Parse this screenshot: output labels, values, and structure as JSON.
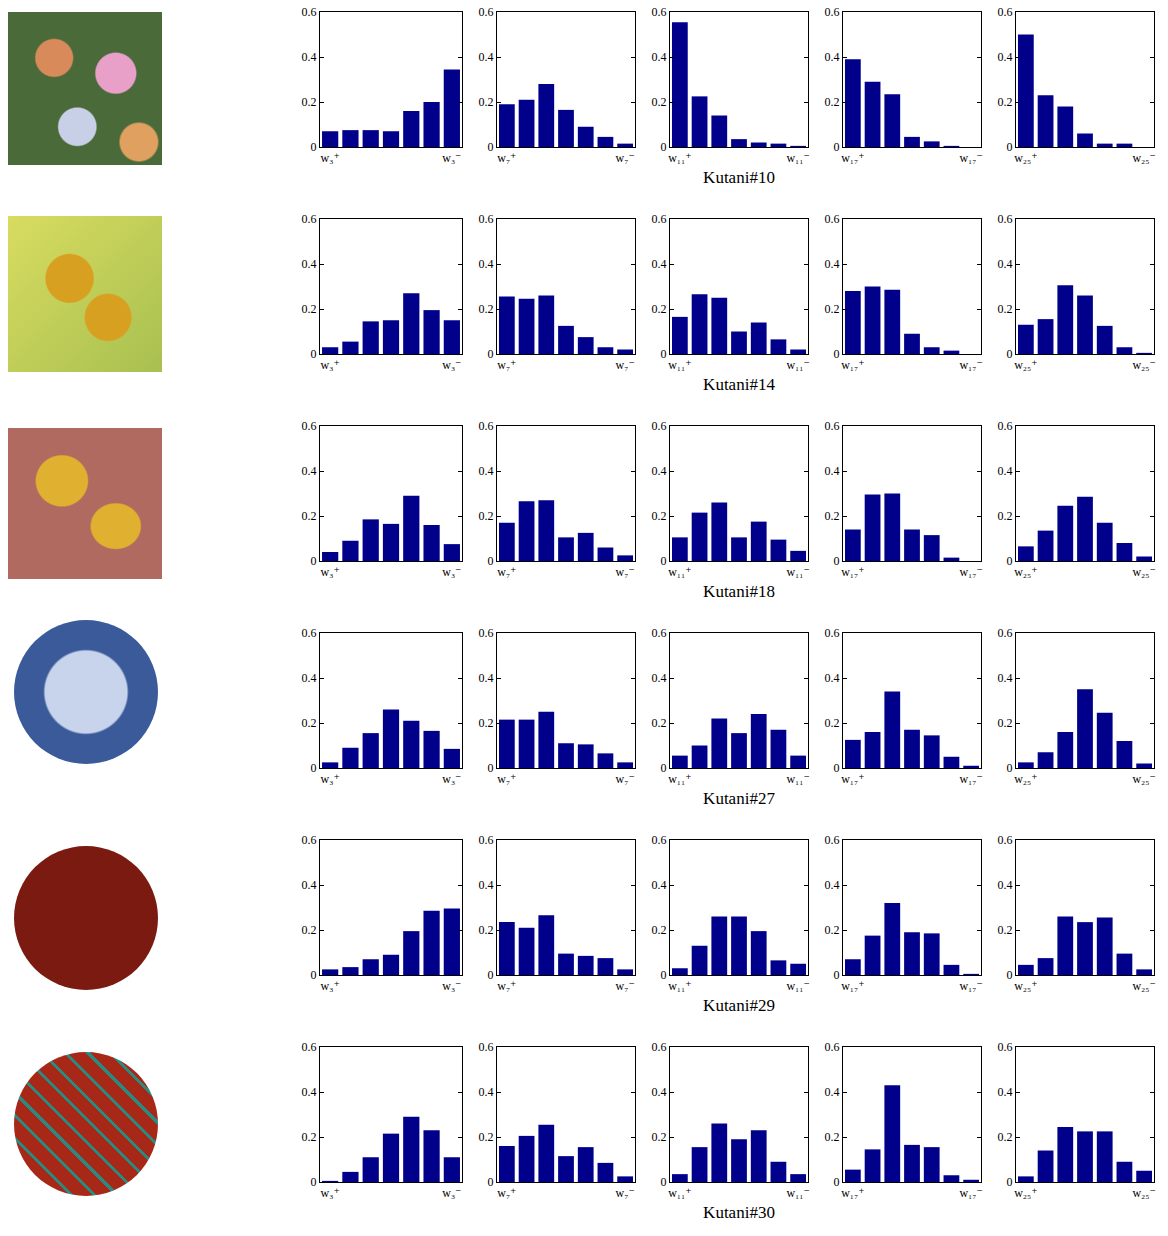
{
  "chart_data": [
    {
      "type": "bar",
      "categories": [
        "w₃⁺",
        null,
        null,
        null,
        null,
        null,
        "w₃⁻"
      ],
      "values": [
        0.07,
        0.075,
        0.075,
        0.07,
        0.16,
        0.2,
        0.345
      ],
      "ylim": [
        0,
        0.6
      ],
      "yticks": [
        0,
        0.2,
        0.4,
        0.6
      ],
      "color": "#00008b"
    },
    {
      "type": "bar",
      "categories": [
        "w₇⁺",
        null,
        null,
        null,
        null,
        null,
        "w₇⁻"
      ],
      "values": [
        0.19,
        0.21,
        0.28,
        0.165,
        0.09,
        0.045,
        0.015
      ],
      "ylim": [
        0,
        0.6
      ],
      "yticks": [
        0,
        0.2,
        0.4,
        0.6
      ],
      "color": "#00008b"
    },
    {
      "type": "bar",
      "categories": [
        "w₁₁⁺",
        null,
        null,
        null,
        null,
        null,
        "w₁₁⁻"
      ],
      "values": [
        0.555,
        0.225,
        0.14,
        0.035,
        0.02,
        0.015,
        0.005
      ],
      "ylim": [
        0,
        0.6
      ],
      "yticks": [
        0,
        0.2,
        0.4,
        0.6
      ],
      "color": "#00008b",
      "xlabel": "Kutani#10"
    },
    {
      "type": "bar",
      "categories": [
        "w₁₇⁺",
        null,
        null,
        null,
        null,
        null,
        "w₁₇⁻"
      ],
      "values": [
        0.39,
        0.29,
        0.235,
        0.045,
        0.025,
        0.005,
        0
      ],
      "ylim": [
        0,
        0.6
      ],
      "yticks": [
        0,
        0.2,
        0.4,
        0.6
      ],
      "color": "#00008b"
    },
    {
      "type": "bar",
      "categories": [
        "w₂₅⁺",
        null,
        null,
        null,
        null,
        null,
        "w₂₅⁻"
      ],
      "values": [
        0.5,
        0.23,
        0.18,
        0.06,
        0.015,
        0.015,
        0
      ],
      "ylim": [
        0,
        0.6
      ],
      "yticks": [
        0,
        0.2,
        0.4,
        0.6
      ],
      "color": "#00008b"
    },
    {
      "type": "bar",
      "categories": [
        "w₃⁺",
        null,
        null,
        null,
        null,
        null,
        "w₃⁻"
      ],
      "values": [
        0.03,
        0.055,
        0.145,
        0.15,
        0.27,
        0.195,
        0.15
      ],
      "ylim": [
        0,
        0.6
      ],
      "yticks": [
        0,
        0.2,
        0.4,
        0.6
      ],
      "color": "#00008b"
    },
    {
      "type": "bar",
      "categories": [
        "w₇⁺",
        null,
        null,
        null,
        null,
        null,
        "w₇⁻"
      ],
      "values": [
        0.255,
        0.245,
        0.26,
        0.125,
        0.075,
        0.03,
        0.02
      ],
      "ylim": [
        0,
        0.6
      ],
      "yticks": [
        0,
        0.2,
        0.4,
        0.6
      ],
      "color": "#00008b"
    },
    {
      "type": "bar",
      "categories": [
        "w₁₁⁺",
        null,
        null,
        null,
        null,
        null,
        "w₁₁⁻"
      ],
      "values": [
        0.165,
        0.265,
        0.25,
        0.1,
        0.14,
        0.065,
        0.02
      ],
      "ylim": [
        0,
        0.6
      ],
      "yticks": [
        0,
        0.2,
        0.4,
        0.6
      ],
      "color": "#00008b",
      "xlabel": "Kutani#14"
    },
    {
      "type": "bar",
      "categories": [
        "w₁₇⁺",
        null,
        null,
        null,
        null,
        null,
        "w₁₇⁻"
      ],
      "values": [
        0.28,
        0.3,
        0.285,
        0.09,
        0.03,
        0.015,
        0
      ],
      "ylim": [
        0,
        0.6
      ],
      "yticks": [
        0,
        0.2,
        0.4,
        0.6
      ],
      "color": "#00008b"
    },
    {
      "type": "bar",
      "categories": [
        "w₂₅⁺",
        null,
        null,
        null,
        null,
        null,
        "w₂₅⁻"
      ],
      "values": [
        0.13,
        0.155,
        0.305,
        0.26,
        0.125,
        0.03,
        0.005
      ],
      "ylim": [
        0,
        0.6
      ],
      "yticks": [
        0,
        0.2,
        0.4,
        0.6
      ],
      "color": "#00008b"
    },
    {
      "type": "bar",
      "categories": [
        "w₃⁺",
        null,
        null,
        null,
        null,
        null,
        "w₃⁻"
      ],
      "values": [
        0.04,
        0.09,
        0.185,
        0.165,
        0.29,
        0.16,
        0.075
      ],
      "ylim": [
        0,
        0.6
      ],
      "yticks": [
        0,
        0.2,
        0.4,
        0.6
      ],
      "color": "#00008b"
    },
    {
      "type": "bar",
      "categories": [
        "w₇⁺",
        null,
        null,
        null,
        null,
        null,
        "w₇⁻"
      ],
      "values": [
        0.17,
        0.265,
        0.27,
        0.105,
        0.125,
        0.06,
        0.025
      ],
      "ylim": [
        0,
        0.6
      ],
      "yticks": [
        0,
        0.2,
        0.4,
        0.6
      ],
      "color": "#00008b"
    },
    {
      "type": "bar",
      "categories": [
        "w₁₁⁺",
        null,
        null,
        null,
        null,
        null,
        "w₁₁⁻"
      ],
      "values": [
        0.105,
        0.215,
        0.26,
        0.105,
        0.175,
        0.095,
        0.045
      ],
      "ylim": [
        0,
        0.6
      ],
      "yticks": [
        0,
        0.2,
        0.4,
        0.6
      ],
      "color": "#00008b",
      "xlabel": "Kutani#18"
    },
    {
      "type": "bar",
      "categories": [
        "w₁₇⁺",
        null,
        null,
        null,
        null,
        null,
        "w₁₇⁻"
      ],
      "values": [
        0.14,
        0.295,
        0.3,
        0.14,
        0.115,
        0.015,
        0
      ],
      "ylim": [
        0,
        0.6
      ],
      "yticks": [
        0,
        0.2,
        0.4,
        0.6
      ],
      "color": "#00008b"
    },
    {
      "type": "bar",
      "categories": [
        "w₂₅⁺",
        null,
        null,
        null,
        null,
        null,
        "w₂₅⁻"
      ],
      "values": [
        0.065,
        0.135,
        0.245,
        0.285,
        0.17,
        0.08,
        0.02
      ],
      "ylim": [
        0,
        0.6
      ],
      "yticks": [
        0,
        0.2,
        0.4,
        0.6
      ],
      "color": "#00008b"
    },
    {
      "type": "bar",
      "categories": [
        "w₃⁺",
        null,
        null,
        null,
        null,
        null,
        "w₃⁻"
      ],
      "values": [
        0.025,
        0.09,
        0.155,
        0.26,
        0.21,
        0.165,
        0.085
      ],
      "ylim": [
        0,
        0.6
      ],
      "yticks": [
        0,
        0.2,
        0.4,
        0.6
      ],
      "color": "#00008b"
    },
    {
      "type": "bar",
      "categories": [
        "w₇⁺",
        null,
        null,
        null,
        null,
        null,
        "w₇⁻"
      ],
      "values": [
        0.215,
        0.215,
        0.25,
        0.11,
        0.105,
        0.065,
        0.025
      ],
      "ylim": [
        0,
        0.6
      ],
      "yticks": [
        0,
        0.2,
        0.4,
        0.6
      ],
      "color": "#00008b"
    },
    {
      "type": "bar",
      "categories": [
        "w₁₁⁺",
        null,
        null,
        null,
        null,
        null,
        "w₁₁⁻"
      ],
      "values": [
        0.055,
        0.1,
        0.22,
        0.155,
        0.24,
        0.17,
        0.055
      ],
      "ylim": [
        0,
        0.6
      ],
      "yticks": [
        0,
        0.2,
        0.4,
        0.6
      ],
      "color": "#00008b",
      "xlabel": "Kutani#27"
    },
    {
      "type": "bar",
      "categories": [
        "w₁₇⁺",
        null,
        null,
        null,
        null,
        null,
        "w₁₇⁻"
      ],
      "values": [
        0.125,
        0.16,
        0.34,
        0.17,
        0.145,
        0.05,
        0.01
      ],
      "ylim": [
        0,
        0.6
      ],
      "yticks": [
        0,
        0.2,
        0.4,
        0.6
      ],
      "color": "#00008b"
    },
    {
      "type": "bar",
      "categories": [
        "w₂₅⁺",
        null,
        null,
        null,
        null,
        null,
        "w₂₅⁻"
      ],
      "values": [
        0.025,
        0.07,
        0.16,
        0.35,
        0.245,
        0.12,
        0.02
      ],
      "ylim": [
        0,
        0.6
      ],
      "yticks": [
        0,
        0.2,
        0.4,
        0.6
      ],
      "color": "#00008b"
    },
    {
      "type": "bar",
      "categories": [
        "w₃⁺",
        null,
        null,
        null,
        null,
        null,
        "w₃⁻"
      ],
      "values": [
        0.025,
        0.035,
        0.07,
        0.09,
        0.195,
        0.285,
        0.295
      ],
      "ylim": [
        0,
        0.6
      ],
      "yticks": [
        0,
        0.2,
        0.4,
        0.6
      ],
      "color": "#00008b"
    },
    {
      "type": "bar",
      "categories": [
        "w₇⁺",
        null,
        null,
        null,
        null,
        null,
        "w₇⁻"
      ],
      "values": [
        0.235,
        0.21,
        0.265,
        0.095,
        0.085,
        0.075,
        0.025
      ],
      "ylim": [
        0,
        0.6
      ],
      "yticks": [
        0,
        0.2,
        0.4,
        0.6
      ],
      "color": "#00008b"
    },
    {
      "type": "bar",
      "categories": [
        "w₁₁⁺",
        null,
        null,
        null,
        null,
        null,
        "w₁₁⁻"
      ],
      "values": [
        0.03,
        0.13,
        0.26,
        0.26,
        0.195,
        0.065,
        0.05
      ],
      "ylim": [
        0,
        0.6
      ],
      "yticks": [
        0,
        0.2,
        0.4,
        0.6
      ],
      "color": "#00008b",
      "xlabel": "Kutani#29"
    },
    {
      "type": "bar",
      "categories": [
        "w₁₇⁺",
        null,
        null,
        null,
        null,
        null,
        "w₁₇⁻"
      ],
      "values": [
        0.07,
        0.175,
        0.32,
        0.19,
        0.185,
        0.045,
        0.005
      ],
      "ylim": [
        0,
        0.6
      ],
      "yticks": [
        0,
        0.2,
        0.4,
        0.6
      ],
      "color": "#00008b"
    },
    {
      "type": "bar",
      "categories": [
        "w₂₅⁺",
        null,
        null,
        null,
        null,
        null,
        "w₂₅⁻"
      ],
      "values": [
        0.045,
        0.075,
        0.26,
        0.235,
        0.255,
        0.095,
        0.025
      ],
      "ylim": [
        0,
        0.6
      ],
      "yticks": [
        0,
        0.2,
        0.4,
        0.6
      ],
      "color": "#00008b"
    },
    {
      "type": "bar",
      "categories": [
        "w₃⁺",
        null,
        null,
        null,
        null,
        null,
        "w₃⁻"
      ],
      "values": [
        0.005,
        0.045,
        0.11,
        0.215,
        0.29,
        0.23,
        0.11
      ],
      "ylim": [
        0,
        0.6
      ],
      "yticks": [
        0,
        0.2,
        0.4,
        0.6
      ],
      "color": "#00008b"
    },
    {
      "type": "bar",
      "categories": [
        "w₇⁺",
        null,
        null,
        null,
        null,
        null,
        "w₇⁻"
      ],
      "values": [
        0.16,
        0.205,
        0.255,
        0.115,
        0.155,
        0.085,
        0.025
      ],
      "ylim": [
        0,
        0.6
      ],
      "yticks": [
        0,
        0.2,
        0.4,
        0.6
      ],
      "color": "#00008b"
    },
    {
      "type": "bar",
      "categories": [
        "w₁₁⁺",
        null,
        null,
        null,
        null,
        null,
        "w₁₁⁻"
      ],
      "values": [
        0.035,
        0.155,
        0.26,
        0.19,
        0.23,
        0.09,
        0.035
      ],
      "ylim": [
        0,
        0.6
      ],
      "yticks": [
        0,
        0.2,
        0.4,
        0.6
      ],
      "color": "#00008b",
      "xlabel": "Kutani#30"
    },
    {
      "type": "bar",
      "categories": [
        "w₁₇⁺",
        null,
        null,
        null,
        null,
        null,
        "w₁₇⁻"
      ],
      "values": [
        0.055,
        0.145,
        0.43,
        0.165,
        0.155,
        0.03,
        0.01
      ],
      "ylim": [
        0,
        0.6
      ],
      "yticks": [
        0,
        0.2,
        0.4,
        0.6
      ],
      "color": "#00008b"
    },
    {
      "type": "bar",
      "categories": [
        "w₂₅⁺",
        null,
        null,
        null,
        null,
        null,
        "w₂₅⁻"
      ],
      "values": [
        0.025,
        0.14,
        0.245,
        0.225,
        0.225,
        0.09,
        0.05
      ],
      "ylim": [
        0,
        0.6
      ],
      "yticks": [
        0,
        0.2,
        0.4,
        0.6
      ],
      "color": "#00008b"
    }
  ]
}
